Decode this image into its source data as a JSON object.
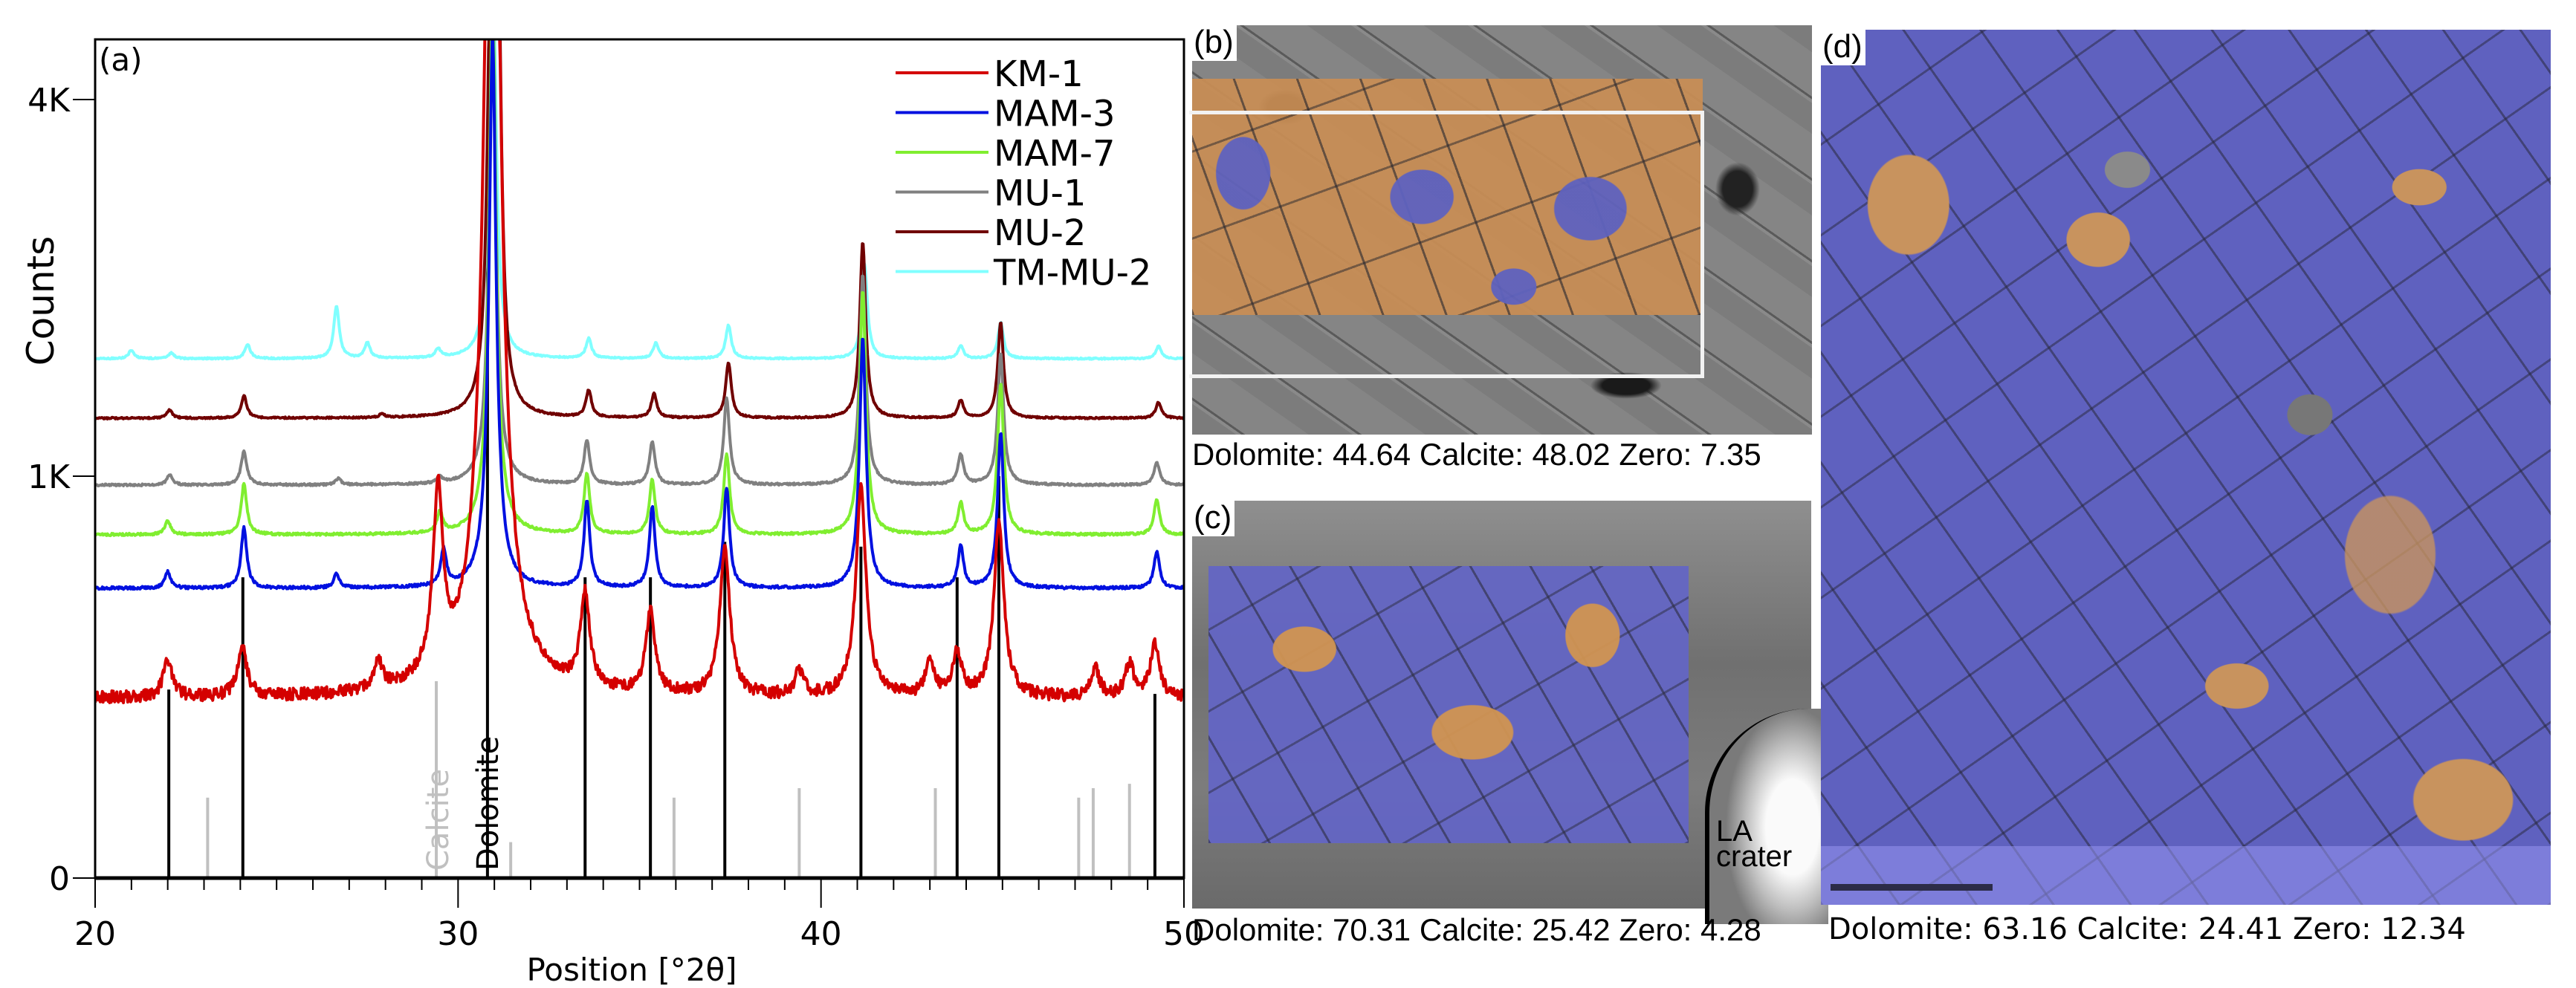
{
  "chart_data": {
    "type": "line",
    "panel_label": "(a)",
    "xlabel": "Position [°2θ]",
    "ylabel": "Counts",
    "xlim": [
      20,
      50
    ],
    "ylim": [
      0,
      4500
    ],
    "yscale": "sqrt",
    "xticks": [
      20,
      30,
      40,
      50
    ],
    "xtick_labels": [
      "20",
      "30",
      "40",
      "50"
    ],
    "yticks": [
      0,
      1000,
      4000
    ],
    "ytick_labels": [
      "0",
      "1K",
      "4K"
    ],
    "legend_position": "top-right",
    "series": [
      {
        "name": "KM-1",
        "color": "#d40000",
        "baseline": 200,
        "peaks": [
          [
            22.0,
            90
          ],
          [
            24.05,
            130
          ],
          [
            27.8,
            70
          ],
          [
            29.45,
            700
          ],
          [
            30.85,
            6000
          ],
          [
            31.05,
            5200
          ],
          [
            33.5,
            280
          ],
          [
            35.3,
            230
          ],
          [
            37.35,
            480
          ],
          [
            39.4,
            60
          ],
          [
            41.1,
            750
          ],
          [
            43.0,
            90
          ],
          [
            43.75,
            110
          ],
          [
            44.9,
            580
          ],
          [
            47.55,
            70
          ],
          [
            48.5,
            80
          ],
          [
            49.2,
            140
          ]
        ]
      },
      {
        "name": "MAM-3",
        "color": "#0010e0",
        "baseline": 520,
        "peaks": [
          [
            22.0,
            60
          ],
          [
            24.1,
            240
          ],
          [
            26.65,
            50
          ],
          [
            29.6,
            140
          ],
          [
            30.95,
            4200
          ],
          [
            33.55,
            360
          ],
          [
            35.35,
            330
          ],
          [
            37.4,
            420
          ],
          [
            41.15,
            1350
          ],
          [
            43.85,
            160
          ],
          [
            44.95,
            720
          ],
          [
            49.25,
            140
          ]
        ]
      },
      {
        "name": "MAM-7",
        "color": "#80ee30",
        "baseline": 730,
        "peaks": [
          [
            22.0,
            60
          ],
          [
            24.1,
            230
          ],
          [
            29.5,
            90
          ],
          [
            30.95,
            4500
          ],
          [
            33.55,
            280
          ],
          [
            35.35,
            250
          ],
          [
            37.4,
            390
          ],
          [
            41.15,
            1500
          ],
          [
            43.85,
            140
          ],
          [
            44.95,
            820
          ],
          [
            49.25,
            160
          ]
        ]
      },
      {
        "name": "MU-1",
        "color": "#808080",
        "baseline": 956,
        "peaks": [
          [
            22.05,
            50
          ],
          [
            24.1,
            180
          ],
          [
            26.7,
            30
          ],
          [
            29.5,
            30
          ],
          [
            30.95,
            4300
          ],
          [
            33.55,
            240
          ],
          [
            35.35,
            230
          ],
          [
            37.4,
            500
          ],
          [
            41.15,
            1400
          ],
          [
            43.85,
            160
          ],
          [
            44.95,
            800
          ],
          [
            49.25,
            120
          ]
        ]
      },
      {
        "name": "MU-2",
        "color": "#700000",
        "baseline": 1331,
        "peaks": [
          [
            22.05,
            50
          ],
          [
            24.1,
            140
          ],
          [
            27.9,
            20
          ],
          [
            30.9,
            4000
          ],
          [
            31.1,
            4200
          ],
          [
            33.6,
            170
          ],
          [
            35.4,
            150
          ],
          [
            37.45,
            360
          ],
          [
            41.15,
            1300
          ],
          [
            43.85,
            110
          ],
          [
            44.95,
            650
          ],
          [
            49.3,
            100
          ]
        ]
      },
      {
        "name": "TM-MU-2",
        "color": "#80ffff",
        "baseline": 1721,
        "peaks": [
          [
            21.0,
            60
          ],
          [
            22.1,
            40
          ],
          [
            24.2,
            100
          ],
          [
            26.65,
            380
          ],
          [
            27.5,
            110
          ],
          [
            29.45,
            60
          ],
          [
            30.95,
            4500
          ],
          [
            33.6,
            140
          ],
          [
            35.45,
            110
          ],
          [
            37.45,
            240
          ],
          [
            41.2,
            720
          ],
          [
            43.85,
            90
          ],
          [
            44.95,
            260
          ],
          [
            49.3,
            90
          ]
        ]
      }
    ],
    "reference_phases": [
      {
        "name": "Dolomite",
        "color": "#000000",
        "positions": [
          22.03,
          24.07,
          30.81,
          33.5,
          35.3,
          37.35,
          41.1,
          43.75,
          44.9,
          49.2
        ],
        "intensities": [
          220,
          560,
          3300,
          560,
          560,
          700,
          680,
          560,
          1000,
          210
        ]
      },
      {
        "name": "Calcite",
        "color": "#c0c0c0",
        "positions": [
          23.1,
          29.4,
          31.45,
          35.95,
          39.4,
          43.15,
          47.1,
          47.5,
          48.5
        ],
        "intensities": [
          40,
          240,
          8,
          40,
          50,
          50,
          40,
          50,
          55
        ]
      }
    ]
  },
  "panels": [
    {
      "label": "(b)",
      "caption": "Dolomite: 44.64 Calcite: 48.02 Zero: 7.35"
    },
    {
      "label": "(c)",
      "caption": "Dolomite: 70.31 Calcite: 25.42 Zero: 4.28",
      "annotation_line1": "LA",
      "annotation_line2": "crater"
    },
    {
      "label": "(d)",
      "caption": "Dolomite: 63.16 Calcite: 24.41 Zero: 12.34"
    }
  ],
  "colors": {
    "dolomite_phase": "#6466c4",
    "calcite_phase": "#d69650"
  }
}
